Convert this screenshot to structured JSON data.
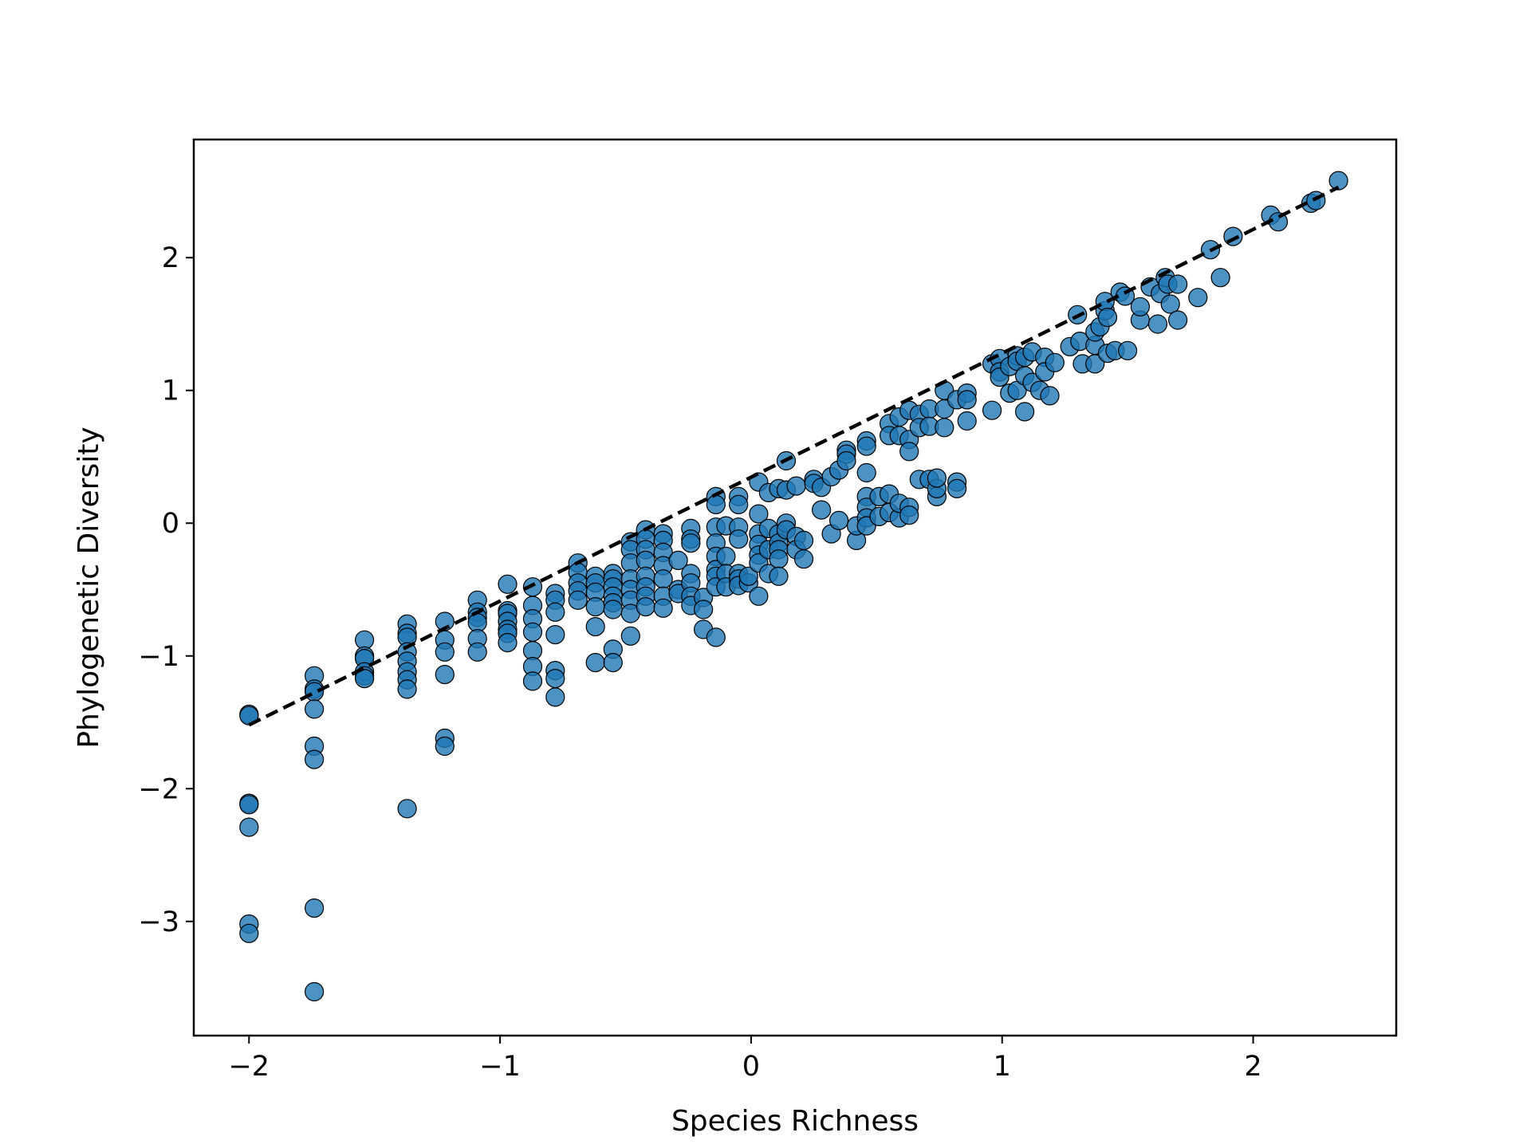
{
  "chart_data": {
    "type": "scatter",
    "xlabel": "Species Richness",
    "ylabel": "Phylogenetic Diversity",
    "xlim": [
      -2.22,
      2.57
    ],
    "ylim": [
      -3.86,
      2.89
    ],
    "xticks": [
      -2,
      -1,
      0,
      1,
      2
    ],
    "yticks": [
      -3,
      -2,
      -1,
      0,
      1,
      2
    ],
    "xtick_labels": [
      "−2",
      "−1",
      "0",
      "1",
      "2"
    ],
    "ytick_labels": [
      "−3",
      "−2",
      "−1",
      "0",
      "1",
      "2"
    ],
    "grid": false,
    "colors": {
      "point_fill": "#1f77b4",
      "point_edge": "#000000",
      "trend_line": "#000000"
    },
    "trend_line": {
      "style": "dashed",
      "x": [
        -2.0,
        2.34
      ],
      "y": [
        -1.52,
        2.53
      ]
    },
    "series": [
      {
        "points": [
          [
            -2.0,
            -1.44
          ],
          [
            -2.0,
            -1.45
          ],
          [
            -2.0,
            -2.11
          ],
          [
            -2.0,
            -2.12
          ],
          [
            -2.0,
            -2.29
          ],
          [
            -2.0,
            -3.02
          ],
          [
            -2.0,
            -3.09
          ],
          [
            -1.74,
            -1.15
          ],
          [
            -1.74,
            -1.25
          ],
          [
            -1.74,
            -1.27
          ],
          [
            -1.74,
            -1.4
          ],
          [
            -1.74,
            -1.68
          ],
          [
            -1.74,
            -1.78
          ],
          [
            -1.74,
            -2.9
          ],
          [
            -1.74,
            -3.53
          ],
          [
            -1.54,
            -0.88
          ],
          [
            -1.54,
            -1.0
          ],
          [
            -1.54,
            -1.02
          ],
          [
            -1.54,
            -1.12
          ],
          [
            -1.54,
            -1.15
          ],
          [
            -1.54,
            -1.17
          ],
          [
            -1.37,
            -0.76
          ],
          [
            -1.37,
            -0.83
          ],
          [
            -1.37,
            -0.86
          ],
          [
            -1.37,
            -0.97
          ],
          [
            -1.37,
            -1.04
          ],
          [
            -1.37,
            -1.12
          ],
          [
            -1.37,
            -1.18
          ],
          [
            -1.37,
            -1.25
          ],
          [
            -1.37,
            -2.15
          ],
          [
            -1.22,
            -0.74
          ],
          [
            -1.22,
            -0.88
          ],
          [
            -1.22,
            -0.97
          ],
          [
            -1.22,
            -1.14
          ],
          [
            -1.22,
            -1.62
          ],
          [
            -1.22,
            -1.68
          ],
          [
            -1.09,
            -0.58
          ],
          [
            -1.09,
            -0.67
          ],
          [
            -1.09,
            -0.71
          ],
          [
            -1.09,
            -0.75
          ],
          [
            -1.09,
            -0.87
          ],
          [
            -1.09,
            -0.97
          ],
          [
            -0.97,
            -0.46
          ],
          [
            -0.97,
            -0.66
          ],
          [
            -0.97,
            -0.68
          ],
          [
            -0.97,
            -0.74
          ],
          [
            -0.97,
            -0.8
          ],
          [
            -0.97,
            -0.83
          ],
          [
            -0.97,
            -0.9
          ],
          [
            -0.87,
            -0.48
          ],
          [
            -0.87,
            -0.62
          ],
          [
            -0.87,
            -0.72
          ],
          [
            -0.87,
            -0.82
          ],
          [
            -0.87,
            -0.96
          ],
          [
            -0.87,
            -1.08
          ],
          [
            -0.87,
            -1.19
          ],
          [
            -0.78,
            -0.53
          ],
          [
            -0.78,
            -0.58
          ],
          [
            -0.78,
            -0.67
          ],
          [
            -0.78,
            -0.84
          ],
          [
            -0.78,
            -1.11
          ],
          [
            -0.78,
            -1.17
          ],
          [
            -0.78,
            -1.31
          ],
          [
            -0.69,
            -0.3
          ],
          [
            -0.69,
            -0.37
          ],
          [
            -0.69,
            -0.45
          ],
          [
            -0.69,
            -0.51
          ],
          [
            -0.69,
            -0.58
          ],
          [
            -0.62,
            -0.4
          ],
          [
            -0.62,
            -0.45
          ],
          [
            -0.62,
            -0.52
          ],
          [
            -0.62,
            -0.63
          ],
          [
            -0.62,
            -0.78
          ],
          [
            -0.62,
            -1.05
          ],
          [
            -0.55,
            -0.38
          ],
          [
            -0.55,
            -0.42
          ],
          [
            -0.55,
            -0.48
          ],
          [
            -0.55,
            -0.55
          ],
          [
            -0.55,
            -0.6
          ],
          [
            -0.55,
            -0.65
          ],
          [
            -0.55,
            -0.95
          ],
          [
            -0.55,
            -1.05
          ],
          [
            -0.48,
            -0.14
          ],
          [
            -0.48,
            -0.2
          ],
          [
            -0.48,
            -0.3
          ],
          [
            -0.48,
            -0.42
          ],
          [
            -0.48,
            -0.5
          ],
          [
            -0.48,
            -0.58
          ],
          [
            -0.48,
            -0.68
          ],
          [
            -0.48,
            -0.85
          ],
          [
            -0.42,
            -0.05
          ],
          [
            -0.42,
            -0.12
          ],
          [
            -0.42,
            -0.2
          ],
          [
            -0.42,
            -0.28
          ],
          [
            -0.42,
            -0.4
          ],
          [
            -0.42,
            -0.48
          ],
          [
            -0.42,
            -0.55
          ],
          [
            -0.42,
            -0.63
          ],
          [
            -0.35,
            -0.08
          ],
          [
            -0.35,
            -0.13
          ],
          [
            -0.35,
            -0.22
          ],
          [
            -0.35,
            -0.32
          ],
          [
            -0.35,
            -0.42
          ],
          [
            -0.35,
            -0.55
          ],
          [
            -0.35,
            -0.64
          ],
          [
            -0.29,
            -0.28
          ],
          [
            -0.29,
            -0.5
          ],
          [
            -0.29,
            -0.53
          ],
          [
            -0.24,
            -0.04
          ],
          [
            -0.24,
            -0.12
          ],
          [
            -0.24,
            -0.15
          ],
          [
            -0.24,
            -0.38
          ],
          [
            -0.24,
            -0.45
          ],
          [
            -0.24,
            -0.55
          ],
          [
            -0.24,
            -0.62
          ],
          [
            -0.19,
            -0.56
          ],
          [
            -0.19,
            -0.65
          ],
          [
            -0.19,
            -0.8
          ],
          [
            -0.14,
            0.2
          ],
          [
            -0.14,
            0.14
          ],
          [
            -0.14,
            -0.03
          ],
          [
            -0.14,
            -0.15
          ],
          [
            -0.14,
            -0.25
          ],
          [
            -0.14,
            -0.35
          ],
          [
            -0.14,
            -0.4
          ],
          [
            -0.14,
            -0.48
          ],
          [
            -0.14,
            -0.86
          ],
          [
            -0.1,
            -0.02
          ],
          [
            -0.1,
            -0.25
          ],
          [
            -0.1,
            -0.38
          ],
          [
            -0.1,
            -0.48
          ],
          [
            -0.05,
            0.2
          ],
          [
            -0.05,
            0.14
          ],
          [
            -0.05,
            -0.03
          ],
          [
            -0.05,
            -0.12
          ],
          [
            -0.05,
            -0.38
          ],
          [
            -0.05,
            -0.42
          ],
          [
            -0.05,
            -0.47
          ],
          [
            -0.01,
            -0.45
          ],
          [
            -0.01,
            -0.4
          ],
          [
            0.03,
            0.31
          ],
          [
            0.03,
            0.07
          ],
          [
            0.03,
            -0.08
          ],
          [
            0.03,
            -0.16
          ],
          [
            0.03,
            -0.24
          ],
          [
            0.03,
            -0.3
          ],
          [
            0.03,
            -0.55
          ],
          [
            0.07,
            0.23
          ],
          [
            0.07,
            -0.04
          ],
          [
            0.07,
            -0.2
          ],
          [
            0.07,
            -0.38
          ],
          [
            0.11,
            0.26
          ],
          [
            0.11,
            -0.08
          ],
          [
            0.11,
            -0.15
          ],
          [
            0.11,
            -0.2
          ],
          [
            0.11,
            -0.27
          ],
          [
            0.11,
            -0.4
          ],
          [
            0.14,
            0.47
          ],
          [
            0.14,
            0.25
          ],
          [
            0.14,
            0.0
          ],
          [
            0.14,
            -0.05
          ],
          [
            0.18,
            0.28
          ],
          [
            0.18,
            -0.1
          ],
          [
            0.18,
            -0.2
          ],
          [
            0.21,
            -0.13
          ],
          [
            0.21,
            -0.27
          ],
          [
            0.25,
            0.33
          ],
          [
            0.25,
            0.3
          ],
          [
            0.28,
            0.1
          ],
          [
            0.28,
            0.27
          ],
          [
            0.32,
            0.35
          ],
          [
            0.32,
            -0.08
          ],
          [
            0.35,
            0.4
          ],
          [
            0.35,
            0.02
          ],
          [
            0.38,
            0.55
          ],
          [
            0.38,
            0.52
          ],
          [
            0.38,
            0.47
          ],
          [
            0.42,
            -0.13
          ],
          [
            0.42,
            -0.02
          ],
          [
            0.46,
            0.62
          ],
          [
            0.46,
            0.58
          ],
          [
            0.46,
            0.38
          ],
          [
            0.46,
            0.2
          ],
          [
            0.46,
            0.12
          ],
          [
            0.46,
            0.04
          ],
          [
            0.46,
            -0.02
          ],
          [
            0.51,
            0.05
          ],
          [
            0.51,
            0.2
          ],
          [
            0.55,
            0.75
          ],
          [
            0.55,
            0.66
          ],
          [
            0.55,
            0.22
          ],
          [
            0.55,
            0.08
          ],
          [
            0.59,
            0.8
          ],
          [
            0.59,
            0.66
          ],
          [
            0.59,
            0.04
          ],
          [
            0.59,
            0.15
          ],
          [
            0.63,
            0.85
          ],
          [
            0.63,
            0.63
          ],
          [
            0.63,
            0.54
          ],
          [
            0.63,
            0.12
          ],
          [
            0.63,
            0.06
          ],
          [
            0.67,
            0.82
          ],
          [
            0.67,
            0.72
          ],
          [
            0.67,
            0.33
          ],
          [
            0.71,
            0.86
          ],
          [
            0.71,
            0.73
          ],
          [
            0.71,
            0.33
          ],
          [
            0.74,
            0.2
          ],
          [
            0.74,
            0.26
          ],
          [
            0.74,
            0.34
          ],
          [
            0.77,
            1.0
          ],
          [
            0.77,
            0.86
          ],
          [
            0.77,
            0.72
          ],
          [
            0.82,
            0.93
          ],
          [
            0.82,
            0.31
          ],
          [
            0.82,
            0.26
          ],
          [
            0.86,
            0.98
          ],
          [
            0.86,
            0.93
          ],
          [
            0.86,
            0.77
          ],
          [
            0.96,
            1.2
          ],
          [
            0.96,
            0.85
          ],
          [
            0.99,
            1.24
          ],
          [
            0.99,
            1.14
          ],
          [
            0.99,
            1.1
          ],
          [
            1.03,
            0.98
          ],
          [
            1.03,
            1.18
          ],
          [
            1.06,
            1.26
          ],
          [
            1.06,
            1.22
          ],
          [
            1.06,
            1.0
          ],
          [
            1.09,
            1.25
          ],
          [
            1.09,
            0.84
          ],
          [
            1.09,
            1.11
          ],
          [
            1.12,
            1.29
          ],
          [
            1.12,
            1.06
          ],
          [
            1.15,
            1.0
          ],
          [
            1.17,
            1.25
          ],
          [
            1.17,
            1.14
          ],
          [
            1.19,
            0.96
          ],
          [
            1.21,
            1.21
          ],
          [
            1.27,
            1.33
          ],
          [
            1.3,
            1.57
          ],
          [
            1.31,
            1.37
          ],
          [
            1.32,
            1.2
          ],
          [
            1.37,
            1.34
          ],
          [
            1.37,
            1.44
          ],
          [
            1.37,
            1.2
          ],
          [
            1.39,
            1.48
          ],
          [
            1.41,
            1.6
          ],
          [
            1.41,
            1.67
          ],
          [
            1.42,
            1.28
          ],
          [
            1.42,
            1.55
          ],
          [
            1.45,
            1.3
          ],
          [
            1.47,
            1.74
          ],
          [
            1.49,
            1.71
          ],
          [
            1.5,
            1.3
          ],
          [
            1.55,
            1.53
          ],
          [
            1.55,
            1.63
          ],
          [
            1.59,
            1.78
          ],
          [
            1.62,
            1.5
          ],
          [
            1.63,
            1.73
          ],
          [
            1.65,
            1.85
          ],
          [
            1.66,
            1.8
          ],
          [
            1.67,
            1.65
          ],
          [
            1.7,
            1.53
          ],
          [
            1.7,
            1.8
          ],
          [
            1.78,
            1.7
          ],
          [
            1.83,
            2.06
          ],
          [
            1.87,
            1.85
          ],
          [
            1.92,
            2.16
          ],
          [
            2.07,
            2.32
          ],
          [
            2.1,
            2.27
          ],
          [
            2.23,
            2.41
          ],
          [
            2.25,
            2.43
          ],
          [
            2.34,
            2.58
          ]
        ]
      }
    ]
  }
}
